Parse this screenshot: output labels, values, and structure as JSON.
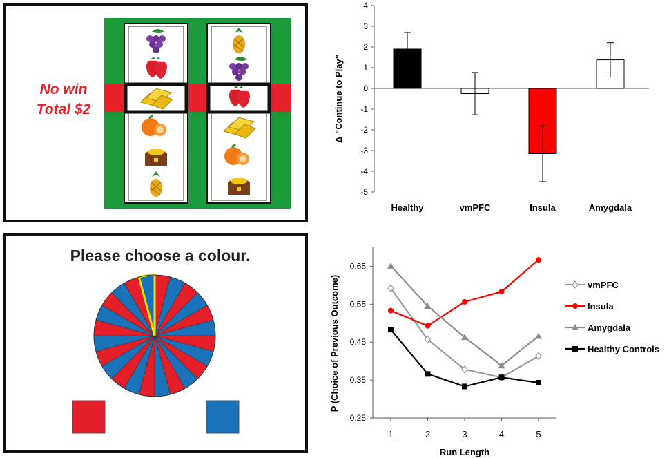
{
  "slot_panel": {
    "status_line1": "No win",
    "status_line2": "Total $2",
    "reel_left": [
      "grapes-icon",
      "strawberry-icon",
      "gold-bars-icon",
      "orange-icon",
      "treasure-chest-icon",
      "pineapple-icon"
    ],
    "reel_right": [
      "pineapple-icon",
      "grapes-icon",
      "strawberry-icon",
      "gold-bars-icon",
      "orange-icon",
      "treasure-chest-icon"
    ],
    "colors": {
      "felt": "#1a9a3a",
      "payline": "#e8202a",
      "text": "#e8202a"
    }
  },
  "wheel_panel": {
    "prompt": "Please choose a colour.",
    "segments": 24,
    "colors": {
      "red": "#e51f2a",
      "blue": "#1a73b8",
      "highlight": "#f5e400"
    },
    "choice_left": "red",
    "choice_right": "blue"
  },
  "chart_data": [
    {
      "type": "bar",
      "categories": [
        "Healthy",
        "vmPFC",
        "Insula",
        "Amygdala"
      ],
      "values": [
        1.9,
        -0.25,
        -3.15,
        1.38
      ],
      "errors": [
        0.8,
        1.02,
        1.35,
        0.83
      ],
      "ylabel": "Δ \"Continue to Play\"",
      "xlabel": "",
      "ylim": [
        -5,
        4
      ],
      "yticks": [
        "4",
        "3",
        "2",
        "1",
        "0",
        "-1",
        "-2",
        "-3",
        "-4",
        "-5"
      ],
      "bar_colors": [
        "#000000",
        "#ffffff",
        "#ff0000",
        "#ffffff"
      ],
      "grid": false
    },
    {
      "type": "line",
      "x": [
        1,
        2,
        3,
        4,
        5
      ],
      "xticks": [
        "1",
        "2",
        "3",
        "4",
        "5"
      ],
      "yticks": [
        "0.65",
        "0.55",
        "0.45",
        "0.35",
        "0.25"
      ],
      "xlabel": "Run Length",
      "ylabel": "P (Choice of Previous Outcome)",
      "ylim": [
        0.25,
        0.7
      ],
      "legend_position": "right",
      "series": [
        {
          "name": "vmPFC",
          "values": [
            0.592,
            0.457,
            0.378,
            0.357,
            0.413
          ],
          "color": "#9a9a9a",
          "marker": "diamond-open"
        },
        {
          "name": "Insula",
          "values": [
            0.533,
            0.493,
            0.556,
            0.583,
            0.667
          ],
          "color": "#ff0000",
          "marker": "circle"
        },
        {
          "name": "Amygdala",
          "values": [
            0.651,
            0.545,
            0.463,
            0.388,
            0.466
          ],
          "color": "#8c8c8c",
          "marker": "triangle"
        },
        {
          "name": "Healthy Controls",
          "values": [
            0.483,
            0.366,
            0.333,
            0.357,
            0.343
          ],
          "color": "#000000",
          "marker": "square"
        }
      ],
      "grid": false
    }
  ]
}
